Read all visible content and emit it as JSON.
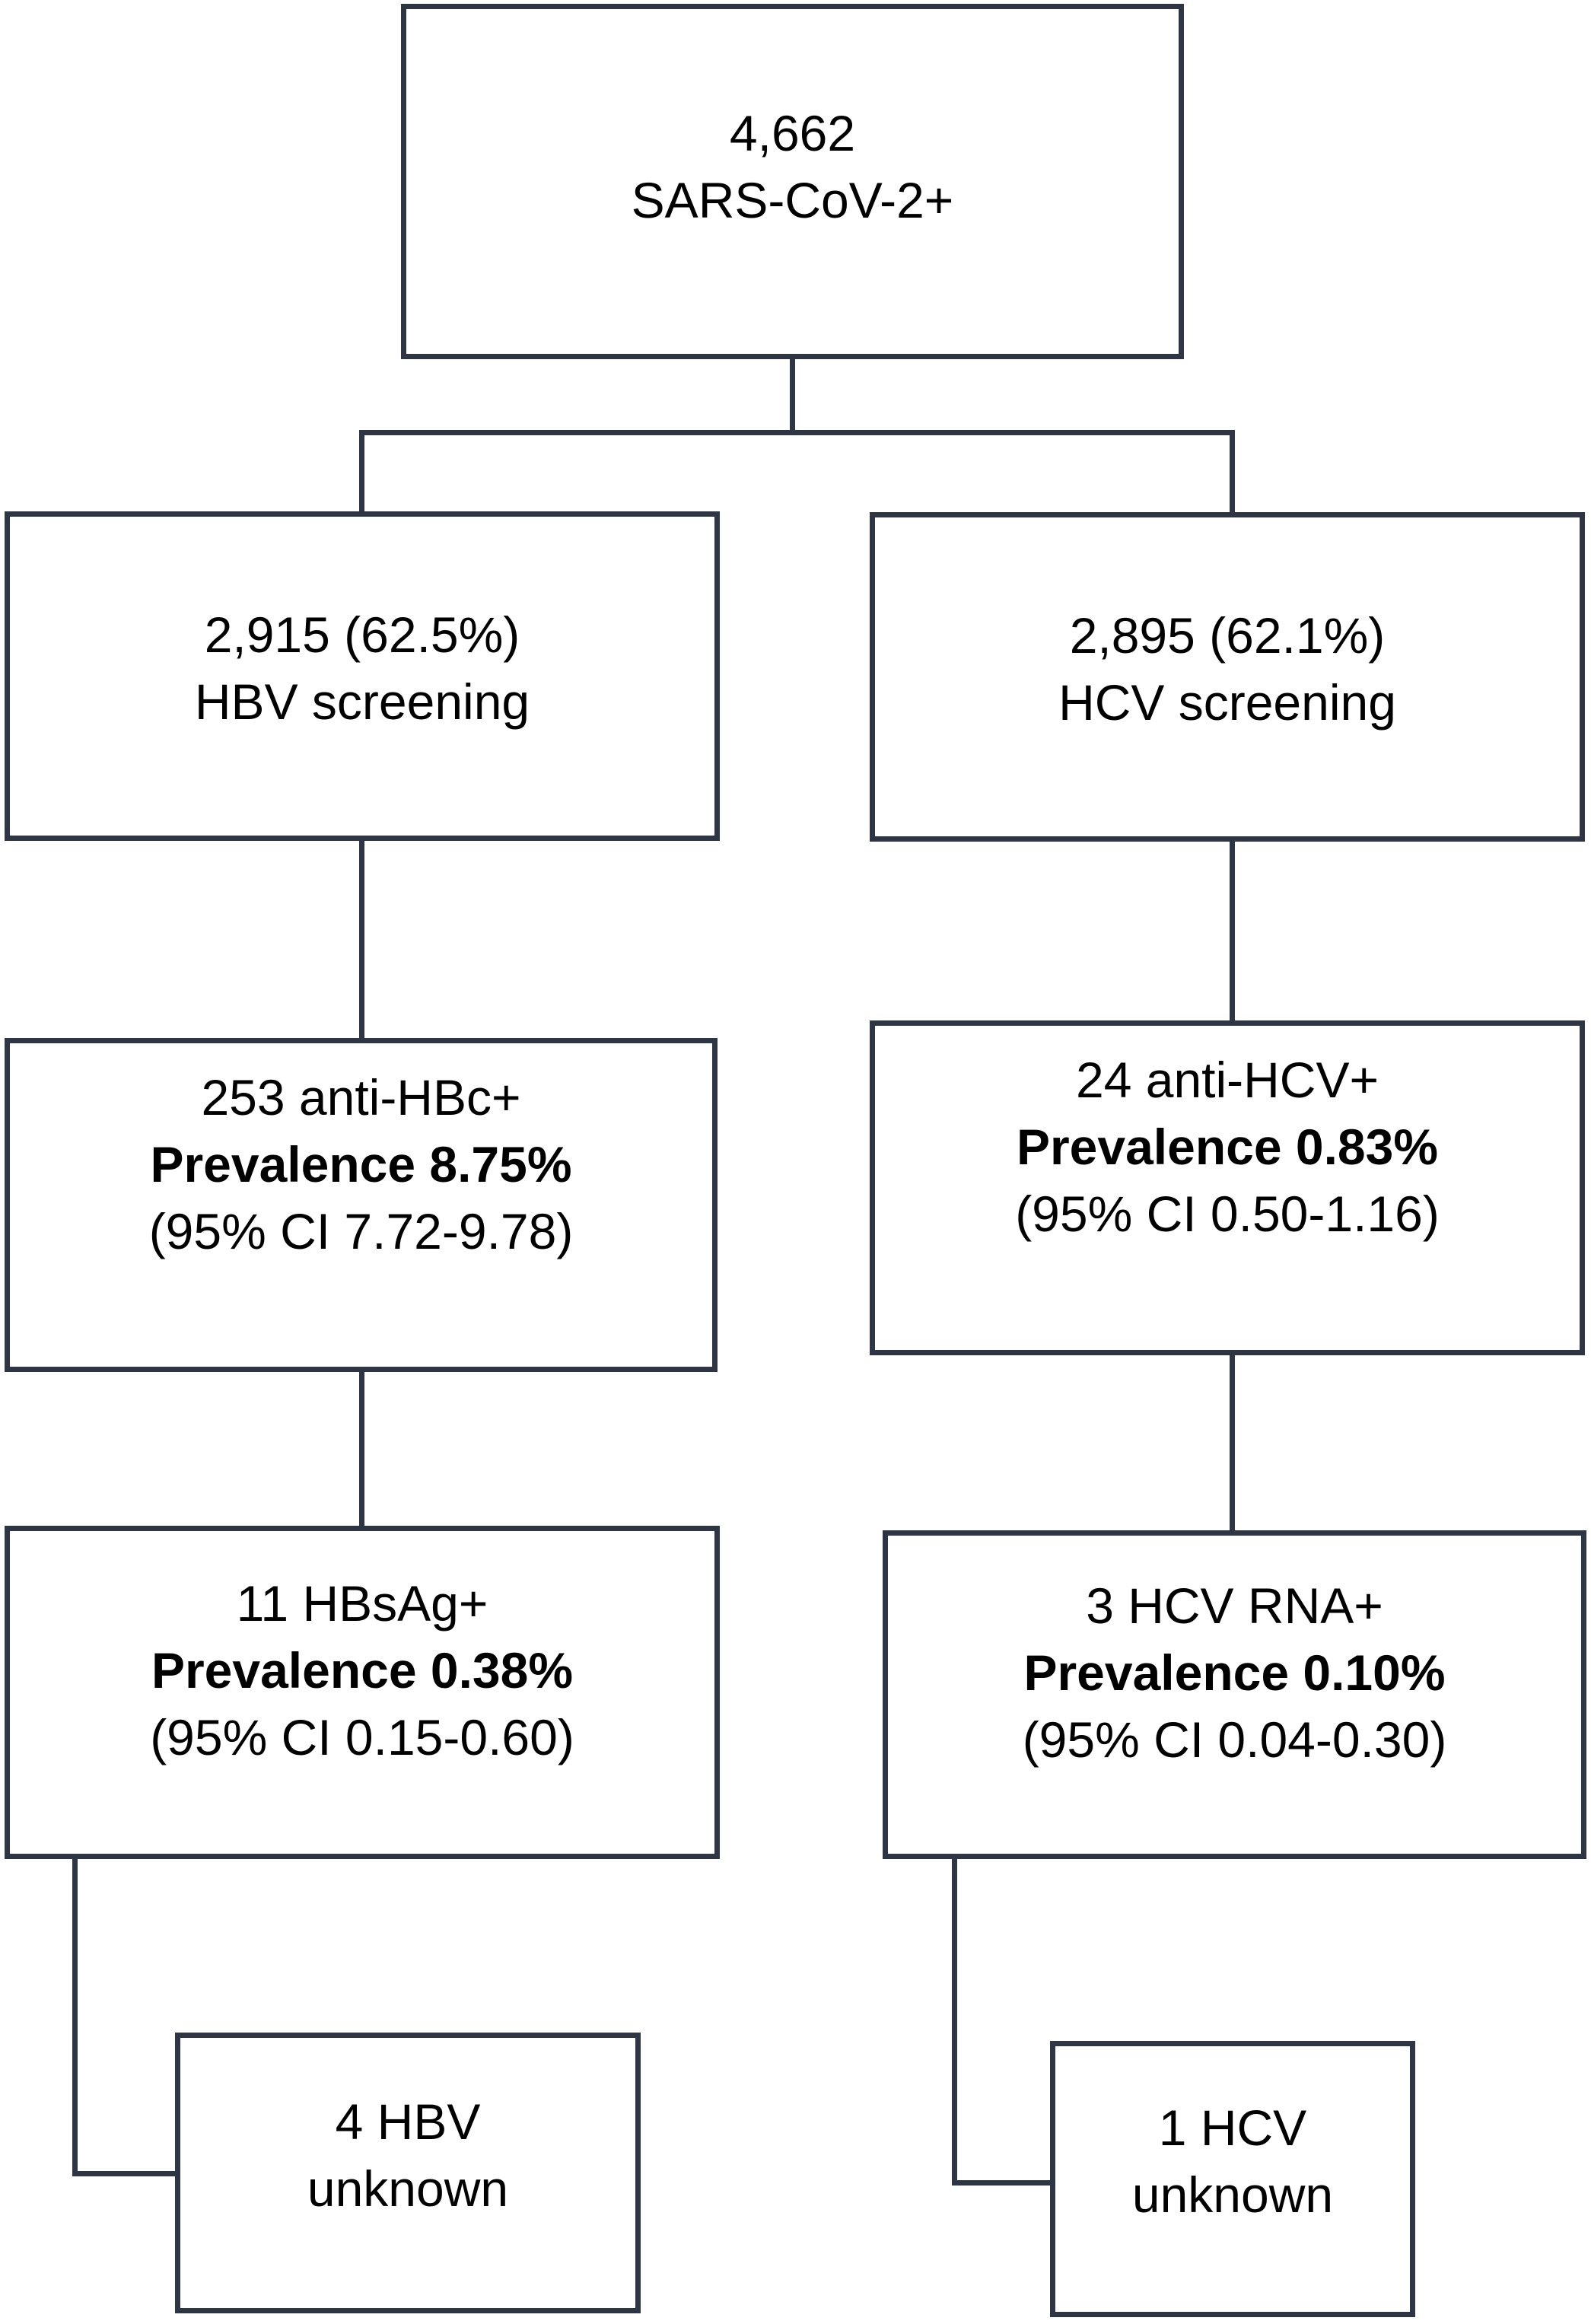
{
  "figure": {
    "type": "flowchart",
    "description": "Screening cascade of SARS-CoV-2 positive patients for HBV and HCV"
  },
  "colors": {
    "border": "#2e3545",
    "text": "#000000",
    "background": "#ffffff"
  },
  "nodes": {
    "root": {
      "lines": [
        "4,662",
        "SARS-CoV-2+"
      ]
    },
    "hbv_screening": {
      "lines": [
        "2,915 (62.5%)",
        "HBV screening"
      ]
    },
    "hcv_screening": {
      "lines": [
        "2,895 (62.1%)",
        "HCV screening"
      ]
    },
    "anti_hbc": {
      "lines": [
        "253 anti-HBc+",
        "Prevalence 8.75%",
        "(95% CI 7.72-9.78)"
      ]
    },
    "anti_hcv": {
      "lines": [
        "24 anti-HCV+",
        "Prevalence 0.83%",
        "(95% CI 0.50-1.16)"
      ]
    },
    "hbsag": {
      "lines": [
        "11 HBsAg+",
        "Prevalence 0.38%",
        "(95% CI 0.15-0.60)"
      ]
    },
    "hcv_rna": {
      "lines": [
        "3 HCV RNA+",
        "Prevalence 0.10%",
        "(95% CI 0.04-0.30)"
      ]
    },
    "hbv_unknown": {
      "lines": [
        "4 HBV",
        "unknown"
      ]
    },
    "hcv_unknown": {
      "lines": [
        "1 HCV",
        "unknown"
      ]
    }
  }
}
